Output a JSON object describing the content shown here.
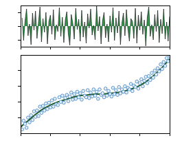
{
  "chart_data": [
    {
      "type": "line",
      "x": [
        1,
        2,
        3,
        4,
        5,
        6,
        7,
        8,
        9,
        10,
        11,
        12,
        13,
        14,
        15,
        16,
        17,
        18,
        19,
        20,
        21,
        22,
        23,
        24,
        25,
        26,
        27,
        28,
        29,
        30,
        31,
        32,
        33,
        34,
        35,
        36,
        37,
        38,
        39,
        40,
        41,
        42,
        43,
        44,
        45,
        46,
        47,
        48,
        49,
        50,
        51,
        52,
        53,
        54,
        55,
        56,
        57,
        58,
        59,
        60,
        61,
        62,
        63,
        64,
        65,
        66,
        67,
        68,
        69,
        70,
        71,
        72,
        73,
        74,
        75,
        76,
        77,
        78,
        79,
        80,
        81,
        82,
        83,
        84,
        85,
        86,
        87,
        88,
        89,
        90,
        91,
        92,
        93,
        94,
        95,
        96,
        97,
        98,
        99,
        100
      ],
      "values": [
        1.2,
        -2.1,
        0.8,
        2.5,
        -1.4,
        0.3,
        -2.7,
        1.9,
        -0.6,
        2.2,
        -1.8,
        0.5,
        2.8,
        -2.3,
        1.1,
        -0.9,
        2.0,
        -2.6,
        0.7,
        1.6,
        -1.2,
        2.4,
        -2.0,
        0.2,
        -0.8,
        2.7,
        -1.5,
        1.3,
        -2.4,
        0.9,
        2.1,
        -1.1,
        -2.8,
        1.7,
        0.4,
        -1.9,
        2.6,
        -0.5,
        1.0,
        -2.2,
        2.3,
        -1.6,
        0.6,
        -2.5,
        1.8,
        -0.3,
        2.5,
        -1.3,
        0.1,
        -2.0,
        2.9,
        -0.7,
        1.4,
        -2.6,
        0.8,
        2.0,
        -1.7,
        0.3,
        -2.3,
        1.5,
        -0.9,
        2.7,
        -2.1,
        1.2,
        -1.0,
        2.2,
        -2.7,
        0.5,
        1.9,
        -1.4,
        2.4,
        -0.4,
        -2.2,
        1.1,
        0.7,
        -1.8,
        2.6,
        -2.5,
        1.6,
        -0.6,
        2.1,
        -1.2,
        0.9,
        -2.9,
        1.3,
        2.8,
        -1.5,
        0.2,
        -2.0,
        1.7,
        -0.8,
        2.3,
        -2.4,
        1.0,
        -1.1,
        2.5,
        -1.9,
        0.6,
        -2.2,
        1.4
      ],
      "color": "#2e9b4a",
      "xlim": [
        0,
        100
      ],
      "xticks": [
        0,
        20,
        40,
        60,
        80,
        100
      ],
      "ylim": [
        -3,
        3
      ],
      "yticks": [
        -2,
        0,
        2
      ],
      "tick_labels": false
    },
    {
      "type": "scatter",
      "series": [
        {
          "type": "scatter",
          "color": "#3a7dbf",
          "marker": "circle",
          "x": [
            1,
            2,
            3,
            4,
            5,
            6,
            7,
            8,
            9,
            10,
            11,
            12,
            13,
            14,
            15,
            16,
            17,
            18,
            19,
            20,
            21,
            22,
            23,
            24,
            25,
            26,
            27,
            28,
            29,
            30,
            31,
            32,
            33,
            34,
            35,
            36,
            37,
            38,
            39,
            40,
            41,
            42,
            43,
            44,
            45,
            46,
            47,
            48,
            49,
            50,
            51,
            52,
            53,
            54,
            55,
            56,
            57,
            58,
            59,
            60,
            61,
            62,
            63,
            64,
            65,
            66,
            67,
            68,
            69,
            70,
            71,
            72,
            73,
            74,
            75,
            76,
            77,
            78,
            79,
            80,
            81,
            82,
            83,
            84,
            85,
            86,
            87,
            88,
            89,
            90,
            91,
            92,
            93,
            94,
            95,
            96,
            97,
            98,
            99,
            100
          ],
          "values": [
            0.5,
            1.6,
            1.2,
            0.7,
            2.0,
            1.4,
            2.3,
            1.7,
            2.8,
            2.1,
            2.9,
            2.2,
            3.4,
            2.6,
            3.5,
            2.9,
            3.8,
            3.1,
            3.9,
            3.3,
            4.2,
            3.4,
            4.4,
            3.7,
            3.6,
            4.6,
            4.0,
            4.8,
            3.9,
            4.5,
            4.9,
            4.1,
            4.7,
            5.2,
            4.3,
            5.0,
            4.4,
            5.3,
            4.6,
            5.1,
            4.3,
            5.4,
            4.8,
            4.6,
            5.5,
            4.5,
            5.2,
            4.7,
            5.6,
            4.8,
            5.3,
            4.4,
            5.6,
            4.9,
            5.1,
            4.6,
            5.7,
            4.8,
            5.4,
            5.0,
            4.7,
            5.8,
            5.0,
            5.5,
            4.9,
            5.9,
            5.1,
            5.6,
            5.3,
            6.0,
            5.2,
            5.8,
            5.6,
            6.3,
            5.4,
            6.1,
            5.9,
            6.6,
            5.7,
            6.4,
            6.9,
            6.0,
            6.7,
            7.2,
            6.4,
            7.3,
            6.8,
            7.7,
            7.1,
            8.0,
            7.5,
            8.3,
            7.9,
            8.8,
            8.2,
            9.1,
            8.6,
            9.6,
            9.2,
            9.9
          ]
        },
        {
          "type": "line",
          "color": "#1f5a2a",
          "x": [
            0,
            5,
            10,
            15,
            20,
            25,
            30,
            35,
            40,
            45,
            50,
            55,
            60,
            65,
            70,
            75,
            80,
            85,
            90,
            95,
            100
          ],
          "values": [
            0.8,
            1.6,
            2.4,
            3.1,
            3.6,
            4.0,
            4.3,
            4.6,
            4.8,
            4.9,
            5.0,
            5.0,
            5.1,
            5.2,
            5.4,
            5.7,
            6.1,
            6.7,
            7.5,
            8.4,
            9.5
          ]
        }
      ],
      "xlim": [
        0,
        100
      ],
      "xticks": [
        0,
        20,
        40,
        60,
        80,
        100
      ],
      "ylim": [
        0,
        10
      ],
      "yticks": [
        2,
        4,
        6,
        8
      ],
      "tick_labels": false
    }
  ]
}
